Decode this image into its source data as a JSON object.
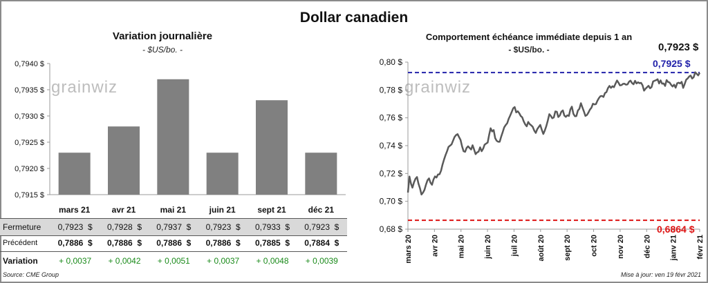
{
  "title": "Dollar canadien",
  "left_panel": {
    "title": "Variation  journalière",
    "subtitle": "- $US/bo. -",
    "watermark": "grainwiz",
    "source": "Source: CME Group"
  },
  "right_panel": {
    "title": "Comportement échéance immédiate depuis 1 an",
    "subtitle": "- $US/bo. -",
    "watermark": "grainwiz",
    "last_value_label": "0,7923 $",
    "high_label": "0,7925 $",
    "low_label": "0,6864 $",
    "updated": "Mise à jour: ven 19 févr 2021"
  },
  "table": {
    "rows": [
      {
        "label": "Fermeture",
        "values": [
          "0,7923  $",
          "0,7928  $",
          "0,7937  $",
          "0,7923  $",
          "0,7933  $",
          "0,7923  $"
        ]
      },
      {
        "label": "Précédent",
        "values": [
          "0,7886  $",
          "0,7886  $",
          "0,7886  $",
          "0,7886  $",
          "0,7885  $",
          "0,7884  $"
        ]
      },
      {
        "label": "Variation",
        "values": [
          "+ 0,0037",
          "+ 0,0042",
          "+ 0,0051",
          "+ 0,0037",
          "+ 0,0048",
          "+ 0,0039"
        ]
      }
    ]
  },
  "colors": {
    "bar": "#808080",
    "line": "#595959",
    "high_line": "#2222aa",
    "low_line": "#dd1111",
    "positive": "#1a8a1a",
    "table_shade": "#d9d9d9"
  },
  "chart_data": [
    {
      "type": "bar",
      "title": "Variation  journalière",
      "subtitle": "- $US/bo. -",
      "categories": [
        "mars 21",
        "avr 21",
        "mai 21",
        "juin 21",
        "sept 21",
        "déc 21"
      ],
      "values": [
        0.7923,
        0.7928,
        0.7937,
        0.7923,
        0.7933,
        0.7923
      ],
      "ylim": [
        0.7915,
        0.794
      ],
      "yticks": [
        0.7915,
        0.792,
        0.7925,
        0.793,
        0.7935,
        0.794
      ],
      "ytick_labels": [
        "0,7915 $",
        "0,7920 $",
        "0,7925 $",
        "0,7930 $",
        "0,7935 $",
        "0,7940 $"
      ],
      "grid": false
    },
    {
      "type": "line",
      "title": "Comportement échéance immédiate depuis 1 an",
      "subtitle": "- $US/bo. -",
      "x_start": "2020-02-19",
      "x_end": "2021-02-19",
      "xtick_labels": [
        "mars 20",
        "avr 20",
        "mai 20",
        "juin 20",
        "juil 20",
        "août 20",
        "sept 20",
        "oct 20",
        "nov 20",
        "déc 20",
        "janv 21",
        "févr 21"
      ],
      "ylim": [
        0.68,
        0.8
      ],
      "yticks": [
        0.68,
        0.7,
        0.72,
        0.74,
        0.76,
        0.78,
        0.8
      ],
      "ytick_labels": [
        "0,68 $",
        "0,70 $",
        "0,72 $",
        "0,74 $",
        "0,76 $",
        "0,78 $",
        "0,80 $"
      ],
      "reference_lines": [
        {
          "value": 0.7925,
          "label": "0,7925 $",
          "color": "#2222aa"
        },
        {
          "value": 0.6864,
          "label": "0,6864 $",
          "color": "#dd1111"
        }
      ],
      "series": [
        {
          "values": [
            0.7063,
            0.7178,
            0.7128,
            0.7098,
            0.7135,
            0.7162,
            0.7175,
            0.7128,
            0.7094,
            0.7049,
            0.7063,
            0.7082,
            0.712,
            0.7151,
            0.7165,
            0.7134,
            0.7119,
            0.7157,
            0.7179,
            0.7171,
            0.7193,
            0.7194,
            0.722,
            0.7263,
            0.73,
            0.7332,
            0.736,
            0.7391,
            0.74,
            0.7409,
            0.7436,
            0.7462,
            0.7476,
            0.7483,
            0.7461,
            0.7441,
            0.7395,
            0.736,
            0.7356,
            0.7383,
            0.7395,
            0.7383,
            0.7372,
            0.7403,
            0.7372,
            0.7339,
            0.7352,
            0.7357,
            0.7388,
            0.736,
            0.7378,
            0.7407,
            0.7415,
            0.7422,
            0.7479,
            0.7525,
            0.7502,
            0.7512,
            0.7454,
            0.7435,
            0.7428,
            0.7428,
            0.7465,
            0.7496,
            0.7531,
            0.7548,
            0.7561,
            0.7593,
            0.7616,
            0.7642,
            0.7669,
            0.7677,
            0.7639,
            0.7647,
            0.7633,
            0.7613,
            0.7604,
            0.7574,
            0.7552,
            0.7539,
            0.757,
            0.7554,
            0.7546,
            0.7535,
            0.7508,
            0.7491,
            0.7519,
            0.7534,
            0.7549,
            0.7514,
            0.7484,
            0.7508,
            0.754,
            0.758,
            0.7626,
            0.7614,
            0.7597,
            0.7603,
            0.7646,
            0.7643,
            0.7606,
            0.7617,
            0.7644,
            0.7653,
            0.7616,
            0.7607,
            0.7618,
            0.7613,
            0.766,
            0.768,
            0.7629,
            0.7611,
            0.7612,
            0.7652,
            0.7665,
            0.7705,
            0.7675,
            0.7646,
            0.7613,
            0.762,
            0.7637,
            0.7659,
            0.7672,
            0.7701,
            0.7696,
            0.7698,
            0.7723,
            0.7742,
            0.7755,
            0.7757,
            0.775,
            0.7778,
            0.7785,
            0.7813,
            0.7829,
            0.7815,
            0.7827,
            0.782,
            0.7845,
            0.7868,
            0.7852,
            0.7833,
            0.7835,
            0.7844,
            0.7845,
            0.7838,
            0.784,
            0.7859,
            0.7867,
            0.785,
            0.7841,
            0.7866,
            0.7847,
            0.7855,
            0.7849,
            0.7851,
            0.7834,
            0.7795,
            0.7809,
            0.782,
            0.783,
            0.7812,
            0.7821,
            0.7861,
            0.7866,
            0.787,
            0.7877,
            0.7847,
            0.7869,
            0.7845,
            0.7847,
            0.7829,
            0.7871,
            0.7857,
            0.7853,
            0.7837,
            0.7825,
            0.7838,
            0.7816,
            0.7848,
            0.7852,
            0.7847,
            0.7858,
            0.7815,
            0.7842,
            0.7873,
            0.7883,
            0.7897,
            0.7904,
            0.7882,
            0.7892,
            0.7927,
            0.7916,
            0.7905,
            0.7923
          ]
        }
      ],
      "grid": false
    }
  ]
}
